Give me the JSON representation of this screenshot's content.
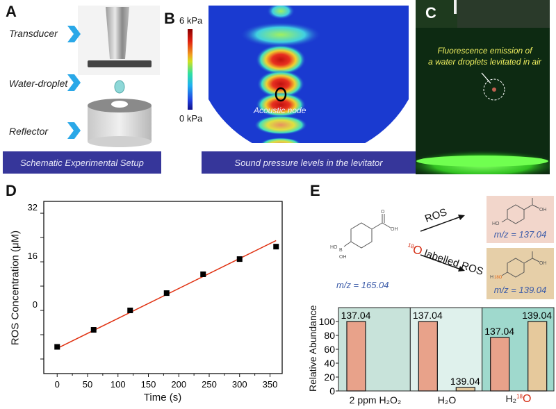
{
  "panels": {
    "a": {
      "label": "A",
      "items": [
        "Transducer",
        "Water-droplet",
        "Reflector"
      ],
      "caption": "Schematic Experimental Setup"
    },
    "b": {
      "label": "B",
      "scale_max": "6 kPa",
      "scale_min": "0 kPa",
      "annotation": "Acoustic node",
      "caption": "Sound pressure levels in the levitator"
    },
    "c": {
      "label": "C",
      "annotation_line1": "Fluorescence emission of",
      "annotation_line2": "a water droplets levitated in air"
    },
    "d": {
      "label": "D"
    },
    "e": {
      "label": "E",
      "reactant_mz": "m/z = 165.04",
      "arrow1": "ROS",
      "arrow2_prefix": "18",
      "arrow2_o": "O",
      "arrow2": " labelled ROS",
      "product1_mz": "m/z = 137.04",
      "product2_mz": "m/z = 139.04",
      "atoms": {
        "ho": "HO",
        "b": "B",
        "oh": "OH",
        "o": "O",
        "h18o_h": "H",
        "h18o_o": "18O"
      }
    }
  },
  "colors": {
    "banner": "#36369a",
    "fit_line": "#e03010",
    "bar_137": "#e8a28a",
    "bar_139": "#e6c99c",
    "label_18o": "#d42a10"
  },
  "chart_data": [
    {
      "type": "scatter",
      "title": "",
      "xlabel": "Time (s)",
      "ylabel": "ROS Concentration (μM)",
      "x": [
        0,
        60,
        120,
        180,
        240,
        300,
        360
      ],
      "y": [
        -12,
        -6.4,
        0,
        5.7,
        11.9,
        16.9,
        21
      ],
      "fit_line": {
        "x": [
          0,
          360
        ],
        "y": [
          -12.5,
          23
        ]
      },
      "xticks": [
        "0",
        "50",
        "100",
        "150",
        "200",
        "250",
        "300",
        "350"
      ],
      "yticks": [
        "0",
        "16",
        "32"
      ],
      "xlim": [
        -22,
        370
      ],
      "ylim": [
        -20.8,
        35.9
      ]
    },
    {
      "type": "bar",
      "ylabel": "Relative Abundance",
      "ylim": [
        0,
        120
      ],
      "yticks": [
        "0",
        "20",
        "40",
        "60",
        "80",
        "100"
      ],
      "categories": [
        "2 ppm H₂O₂",
        "H₂O",
        "H₂"
      ],
      "category3_suffix": "18",
      "category3_o": "O",
      "series": [
        {
          "name": "137.04",
          "values": [
            100,
            100,
            77
          ]
        },
        {
          "name": "139.04",
          "values": [
            null,
            5,
            100
          ]
        }
      ],
      "bar_labels": [
        "137.04",
        "137.04",
        "139.04",
        "137.04",
        "139.04"
      ]
    }
  ]
}
